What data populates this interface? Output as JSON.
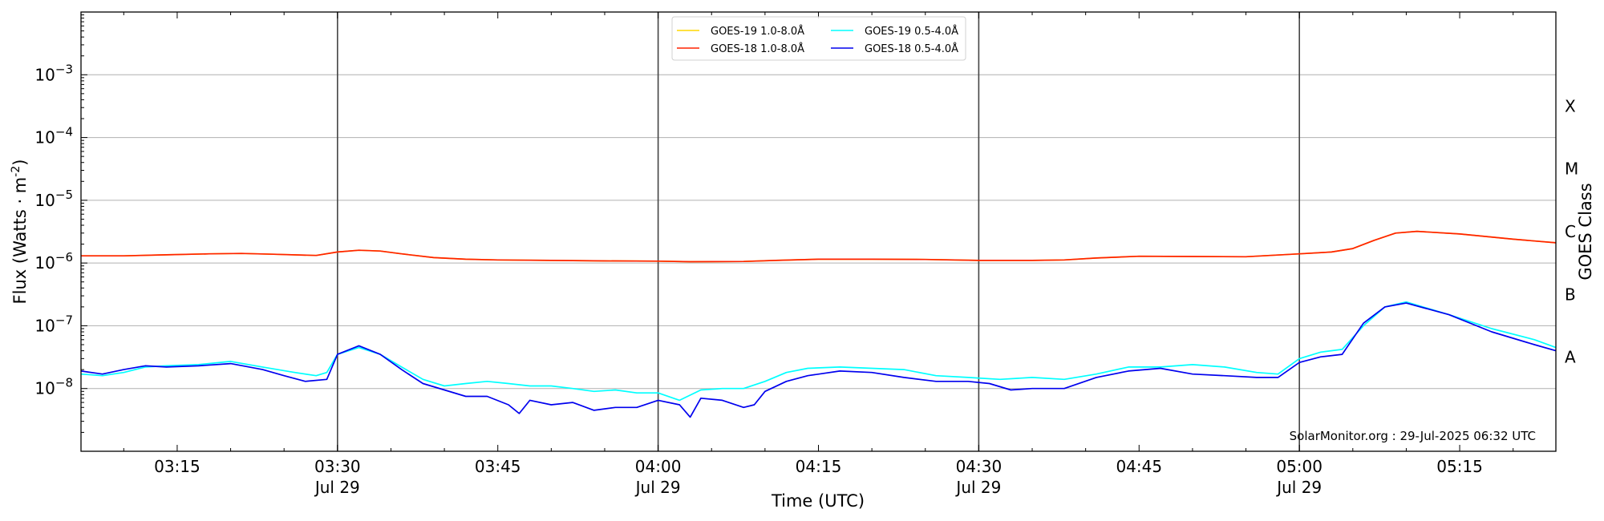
{
  "chart_data": {
    "type": "line",
    "title": "",
    "xlabel": "Time (UTC)",
    "ylabel_main": "Flux (Watts · m",
    "ylabel_exp": "-2",
    "ylabel_close": ")",
    "y2label": "GOES Class",
    "y_scale": "log",
    "xlim": [
      "03:06",
      "05:24"
    ],
    "ylim": [
      1e-09,
      0.01
    ],
    "grid": "horizontal at decades",
    "legend_position": "top-center",
    "x_ticks": [
      {
        "t": "03:15",
        "label": "03:15",
        "sub": ""
      },
      {
        "t": "03:30",
        "label": "03:30",
        "sub": "Jul 29"
      },
      {
        "t": "03:45",
        "label": "03:45",
        "sub": ""
      },
      {
        "t": "04:00",
        "label": "04:00",
        "sub": "Jul 29"
      },
      {
        "t": "04:15",
        "label": "04:15",
        "sub": ""
      },
      {
        "t": "04:30",
        "label": "04:30",
        "sub": "Jul 29"
      },
      {
        "t": "04:45",
        "label": "04:45",
        "sub": ""
      },
      {
        "t": "05:00",
        "label": "05:00",
        "sub": "Jul 29"
      },
      {
        "t": "05:15",
        "label": "05:15",
        "sub": ""
      }
    ],
    "vlines": [
      "03:30",
      "04:00",
      "04:30",
      "05:00"
    ],
    "y_ticks": [
      {
        "exp": -8,
        "base": "10",
        "sup": "−8"
      },
      {
        "exp": -7,
        "base": "10",
        "sup": "−7"
      },
      {
        "exp": -6,
        "base": "10",
        "sup": "−6"
      },
      {
        "exp": -5,
        "base": "10",
        "sup": "−5"
      },
      {
        "exp": -4,
        "base": "10",
        "sup": "−4"
      },
      {
        "exp": -3,
        "base": "10",
        "sup": "−3"
      }
    ],
    "goes_classes": [
      {
        "label": "A",
        "exp": -7.5
      },
      {
        "label": "B",
        "exp": -6.5
      },
      {
        "label": "C",
        "exp": -5.5
      },
      {
        "label": "M",
        "exp": -4.5
      },
      {
        "label": "X",
        "exp": -3.5
      }
    ],
    "legend": [
      {
        "name": "GOES-19 1.0-8.0Å",
        "color": "#ffd700"
      },
      {
        "name": "GOES-19 0.5-4.0Å",
        "color": "#00ffff"
      },
      {
        "name": "GOES-18 1.0-8.0Å",
        "color": "#ff2200"
      },
      {
        "name": "GOES-18 0.5-4.0Å",
        "color": "#0000ee"
      }
    ],
    "series": [
      {
        "name": "GOES-19 1.0-8.0Å",
        "color": "#ffd700",
        "x": [
          "03:06",
          "03:10",
          "03:14",
          "03:18",
          "03:21",
          "03:24",
          "03:28",
          "03:30",
          "03:32",
          "03:34",
          "03:36",
          "03:39",
          "03:42",
          "03:45",
          "03:50",
          "03:55",
          "04:00",
          "04:03",
          "04:08",
          "04:11",
          "04:15",
          "04:20",
          "04:25",
          "04:30",
          "04:35",
          "04:38",
          "04:41",
          "04:45",
          "04:50",
          "04:55",
          "05:00",
          "05:03",
          "05:05",
          "05:07",
          "05:09",
          "05:11",
          "05:15",
          "05:20",
          "05:24"
        ],
        "values": [
          1.3e-06,
          1.3e-06,
          1.35e-06,
          1.4e-06,
          1.42e-06,
          1.38e-06,
          1.32e-06,
          1.5e-06,
          1.6e-06,
          1.55e-06,
          1.4e-06,
          1.22e-06,
          1.15e-06,
          1.12e-06,
          1.1e-06,
          1.08e-06,
          1.07e-06,
          1.05e-06,
          1.06e-06,
          1.1e-06,
          1.15e-06,
          1.15e-06,
          1.14e-06,
          1.1e-06,
          1.1e-06,
          1.12e-06,
          1.2e-06,
          1.28e-06,
          1.27e-06,
          1.26e-06,
          1.4e-06,
          1.5e-06,
          1.7e-06,
          2.3e-06,
          3e-06,
          3.2e-06,
          2.9e-06,
          2.4e-06,
          2.1e-06
        ]
      },
      {
        "name": "GOES-18 1.0-8.0Å",
        "color": "#ff2200",
        "x": [
          "03:06",
          "03:10",
          "03:14",
          "03:18",
          "03:21",
          "03:24",
          "03:28",
          "03:30",
          "03:32",
          "03:34",
          "03:36",
          "03:39",
          "03:42",
          "03:45",
          "03:50",
          "03:55",
          "04:00",
          "04:03",
          "04:08",
          "04:11",
          "04:15",
          "04:20",
          "04:25",
          "04:30",
          "04:35",
          "04:38",
          "04:41",
          "04:45",
          "04:50",
          "04:55",
          "05:00",
          "05:03",
          "05:05",
          "05:07",
          "05:09",
          "05:11",
          "05:15",
          "05:20",
          "05:24"
        ],
        "values": [
          1.3e-06,
          1.3e-06,
          1.35e-06,
          1.4e-06,
          1.42e-06,
          1.38e-06,
          1.32e-06,
          1.5e-06,
          1.6e-06,
          1.55e-06,
          1.4e-06,
          1.22e-06,
          1.15e-06,
          1.12e-06,
          1.1e-06,
          1.08e-06,
          1.07e-06,
          1.05e-06,
          1.06e-06,
          1.1e-06,
          1.15e-06,
          1.15e-06,
          1.14e-06,
          1.1e-06,
          1.1e-06,
          1.12e-06,
          1.2e-06,
          1.28e-06,
          1.27e-06,
          1.26e-06,
          1.4e-06,
          1.5e-06,
          1.7e-06,
          2.3e-06,
          3e-06,
          3.2e-06,
          2.9e-06,
          2.4e-06,
          2.1e-06
        ]
      },
      {
        "name": "GOES-19 0.5-4.0Å",
        "color": "#00ffff",
        "x": [
          "03:06",
          "03:08",
          "03:10",
          "03:12",
          "03:14",
          "03:17",
          "03:20",
          "03:23",
          "03:26",
          "03:28",
          "03:29",
          "03:30",
          "03:32",
          "03:34",
          "03:36",
          "03:38",
          "03:40",
          "03:42",
          "03:44",
          "03:46",
          "03:48",
          "03:50",
          "03:52",
          "03:54",
          "03:56",
          "03:58",
          "04:00",
          "04:02",
          "04:04",
          "04:06",
          "04:08",
          "04:10",
          "04:12",
          "04:14",
          "04:17",
          "04:20",
          "04:23",
          "04:26",
          "04:29",
          "04:32",
          "04:35",
          "04:38",
          "04:41",
          "04:44",
          "04:47",
          "04:50",
          "04:53",
          "04:56",
          "04:58",
          "05:00",
          "05:02",
          "05:04",
          "05:06",
          "05:08",
          "05:10",
          "05:14",
          "05:18",
          "05:22",
          "05:24"
        ],
        "values": [
          1.7e-08,
          1.6e-08,
          1.8e-08,
          2.2e-08,
          2.3e-08,
          2.4e-08,
          2.7e-08,
          2.2e-08,
          1.8e-08,
          1.6e-08,
          1.8e-08,
          3.5e-08,
          4.5e-08,
          3.5e-08,
          2.2e-08,
          1.4e-08,
          1.1e-08,
          1.2e-08,
          1.3e-08,
          1.2e-08,
          1.1e-08,
          1.1e-08,
          1e-08,
          9e-09,
          9.5e-09,
          8.5e-09,
          8.5e-09,
          6.5e-09,
          9.5e-09,
          1e-08,
          1e-08,
          1.3e-08,
          1.8e-08,
          2.1e-08,
          2.2e-08,
          2.1e-08,
          2e-08,
          1.6e-08,
          1.5e-08,
          1.4e-08,
          1.5e-08,
          1.4e-08,
          1.7e-08,
          2.2e-08,
          2.2e-08,
          2.4e-08,
          2.2e-08,
          1.8e-08,
          1.7e-08,
          3e-08,
          3.8e-08,
          4.2e-08,
          1e-07,
          2e-07,
          2.4e-07,
          1.5e-07,
          9e-08,
          6e-08,
          4.5e-08
        ]
      },
      {
        "name": "GOES-18 0.5-4.0Å",
        "color": "#0000ee",
        "x": [
          "03:06",
          "03:08",
          "03:10",
          "03:12",
          "03:14",
          "03:17",
          "03:20",
          "03:23",
          "03:25",
          "03:27",
          "03:29",
          "03:30",
          "03:32",
          "03:34",
          "03:36",
          "03:38",
          "03:40",
          "03:42",
          "03:44",
          "03:46",
          "03:47",
          "03:48",
          "03:50",
          "03:52",
          "03:54",
          "03:56",
          "03:58",
          "04:00",
          "04:02",
          "04:03",
          "04:04",
          "04:06",
          "04:08",
          "04:09",
          "04:10",
          "04:12",
          "04:14",
          "04:17",
          "04:20",
          "04:23",
          "04:26",
          "04:29",
          "04:31",
          "04:33",
          "04:35",
          "04:38",
          "04:41",
          "04:44",
          "04:47",
          "04:50",
          "04:53",
          "04:56",
          "04:58",
          "05:00",
          "05:02",
          "05:04",
          "05:06",
          "05:08",
          "05:10",
          "05:14",
          "05:18",
          "05:22",
          "05:24"
        ],
        "values": [
          1.9e-08,
          1.7e-08,
          2e-08,
          2.3e-08,
          2.2e-08,
          2.3e-08,
          2.5e-08,
          2e-08,
          1.6e-08,
          1.3e-08,
          1.4e-08,
          3.5e-08,
          4.8e-08,
          3.5e-08,
          2e-08,
          1.2e-08,
          9.5e-09,
          7.5e-09,
          7.5e-09,
          5.5e-09,
          4e-09,
          6.5e-09,
          5.5e-09,
          6e-09,
          4.5e-09,
          5e-09,
          5e-09,
          6.5e-09,
          5.5e-09,
          3.5e-09,
          7e-09,
          6.5e-09,
          5e-09,
          5.5e-09,
          9e-09,
          1.3e-08,
          1.6e-08,
          1.9e-08,
          1.8e-08,
          1.5e-08,
          1.3e-08,
          1.3e-08,
          1.2e-08,
          9.5e-09,
          1e-08,
          1e-08,
          1.5e-08,
          1.9e-08,
          2.1e-08,
          1.7e-08,
          1.6e-08,
          1.5e-08,
          1.5e-08,
          2.6e-08,
          3.2e-08,
          3.5e-08,
          1.1e-07,
          2e-07,
          2.3e-07,
          1.5e-07,
          8e-08,
          5e-08,
          4e-08
        ]
      }
    ],
    "annotation": "SolarMonitor.org : 29-Jul-2025 06:32 UTC"
  }
}
